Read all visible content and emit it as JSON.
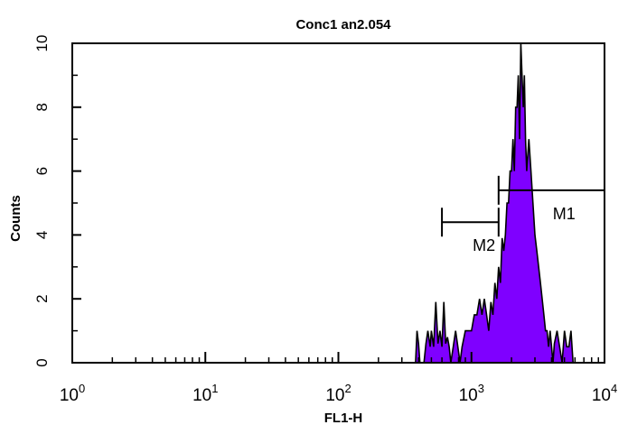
{
  "chart_data": {
    "type": "histogram",
    "title": "Conc1 an2.054",
    "xlabel": "FL1-H",
    "ylabel": "Counts",
    "x_scale": "log",
    "xlim": [
      1,
      10000
    ],
    "ylim": [
      0,
      10
    ],
    "x_ticks": [
      {
        "base": "10",
        "exp": "0",
        "value": 1
      },
      {
        "base": "10",
        "exp": "1",
        "value": 10
      },
      {
        "base": "10",
        "exp": "2",
        "value": 100
      },
      {
        "base": "10",
        "exp": "3",
        "value": 1000
      },
      {
        "base": "10",
        "exp": "4",
        "value": 10000
      }
    ],
    "y_ticks": [
      "0",
      "2",
      "4",
      "6",
      "8",
      "10"
    ],
    "y_tick_values": [
      0,
      2,
      4,
      6,
      8,
      10
    ],
    "fill_color": "#7f00ff",
    "line_color": "#000000",
    "bins": [
      {
        "x": 380,
        "count": 0
      },
      {
        "x": 390,
        "count": 1
      },
      {
        "x": 400,
        "count": 0.6
      },
      {
        "x": 410,
        "count": 0
      },
      {
        "x": 440,
        "count": 0
      },
      {
        "x": 455,
        "count": 0.6
      },
      {
        "x": 470,
        "count": 1
      },
      {
        "x": 490,
        "count": 0.5
      },
      {
        "x": 500,
        "count": 1
      },
      {
        "x": 520,
        "count": 0.5
      },
      {
        "x": 540,
        "count": 1.9
      },
      {
        "x": 560,
        "count": 0.6
      },
      {
        "x": 580,
        "count": 1
      },
      {
        "x": 600,
        "count": 0.5
      },
      {
        "x": 620,
        "count": 1.9
      },
      {
        "x": 640,
        "count": 0.6
      },
      {
        "x": 660,
        "count": 0.8
      },
      {
        "x": 680,
        "count": 0.5
      },
      {
        "x": 700,
        "count": 0
      },
      {
        "x": 730,
        "count": 0.5
      },
      {
        "x": 760,
        "count": 1
      },
      {
        "x": 790,
        "count": 0.5
      },
      {
        "x": 820,
        "count": 0
      },
      {
        "x": 850,
        "count": 0.5
      },
      {
        "x": 900,
        "count": 1
      },
      {
        "x": 950,
        "count": 1
      },
      {
        "x": 1000,
        "count": 1
      },
      {
        "x": 1050,
        "count": 1.5
      },
      {
        "x": 1100,
        "count": 1.5
      },
      {
        "x": 1150,
        "count": 2
      },
      {
        "x": 1200,
        "count": 1.5
      },
      {
        "x": 1250,
        "count": 2
      },
      {
        "x": 1300,
        "count": 1.5
      },
      {
        "x": 1350,
        "count": 1
      },
      {
        "x": 1400,
        "count": 1.9
      },
      {
        "x": 1450,
        "count": 1.5
      },
      {
        "x": 1500,
        "count": 2.5
      },
      {
        "x": 1550,
        "count": 2
      },
      {
        "x": 1600,
        "count": 3
      },
      {
        "x": 1650,
        "count": 2.5
      },
      {
        "x": 1700,
        "count": 3.9
      },
      {
        "x": 1750,
        "count": 3.5
      },
      {
        "x": 1800,
        "count": 4
      },
      {
        "x": 1850,
        "count": 5
      },
      {
        "x": 1900,
        "count": 5
      },
      {
        "x": 1950,
        "count": 6
      },
      {
        "x": 2000,
        "count": 6
      },
      {
        "x": 2050,
        "count": 7
      },
      {
        "x": 2100,
        "count": 6
      },
      {
        "x": 2150,
        "count": 8
      },
      {
        "x": 2200,
        "count": 8
      },
      {
        "x": 2250,
        "count": 9
      },
      {
        "x": 2300,
        "count": 7
      },
      {
        "x": 2350,
        "count": 10
      },
      {
        "x": 2400,
        "count": 9
      },
      {
        "x": 2450,
        "count": 8
      },
      {
        "x": 2500,
        "count": 9
      },
      {
        "x": 2550,
        "count": 7
      },
      {
        "x": 2600,
        "count": 6
      },
      {
        "x": 2700,
        "count": 7
      },
      {
        "x": 2800,
        "count": 6
      },
      {
        "x": 2900,
        "count": 5
      },
      {
        "x": 3000,
        "count": 4
      },
      {
        "x": 3100,
        "count": 3.5
      },
      {
        "x": 3200,
        "count": 3
      },
      {
        "x": 3300,
        "count": 2.5
      },
      {
        "x": 3400,
        "count": 2
      },
      {
        "x": 3500,
        "count": 1.5
      },
      {
        "x": 3600,
        "count": 1
      },
      {
        "x": 3700,
        "count": 1
      },
      {
        "x": 3800,
        "count": 0.5
      },
      {
        "x": 3900,
        "count": 1
      },
      {
        "x": 4000,
        "count": 0.5
      },
      {
        "x": 4100,
        "count": 0
      },
      {
        "x": 4200,
        "count": 0.6
      },
      {
        "x": 4400,
        "count": 1
      },
      {
        "x": 4600,
        "count": 0.5
      },
      {
        "x": 4800,
        "count": 0
      },
      {
        "x": 5000,
        "count": 1
      },
      {
        "x": 5200,
        "count": 0.5
      },
      {
        "x": 5400,
        "count": 0.5
      },
      {
        "x": 5600,
        "count": 1
      },
      {
        "x": 5800,
        "count": 0
      }
    ],
    "markers": [
      {
        "name": "M1",
        "x_start": 1600,
        "x_end": 10000,
        "y": 5.4
      },
      {
        "name": "M2",
        "x_start": 600,
        "x_end": 1600,
        "y": 4.4
      }
    ],
    "grid": false
  }
}
